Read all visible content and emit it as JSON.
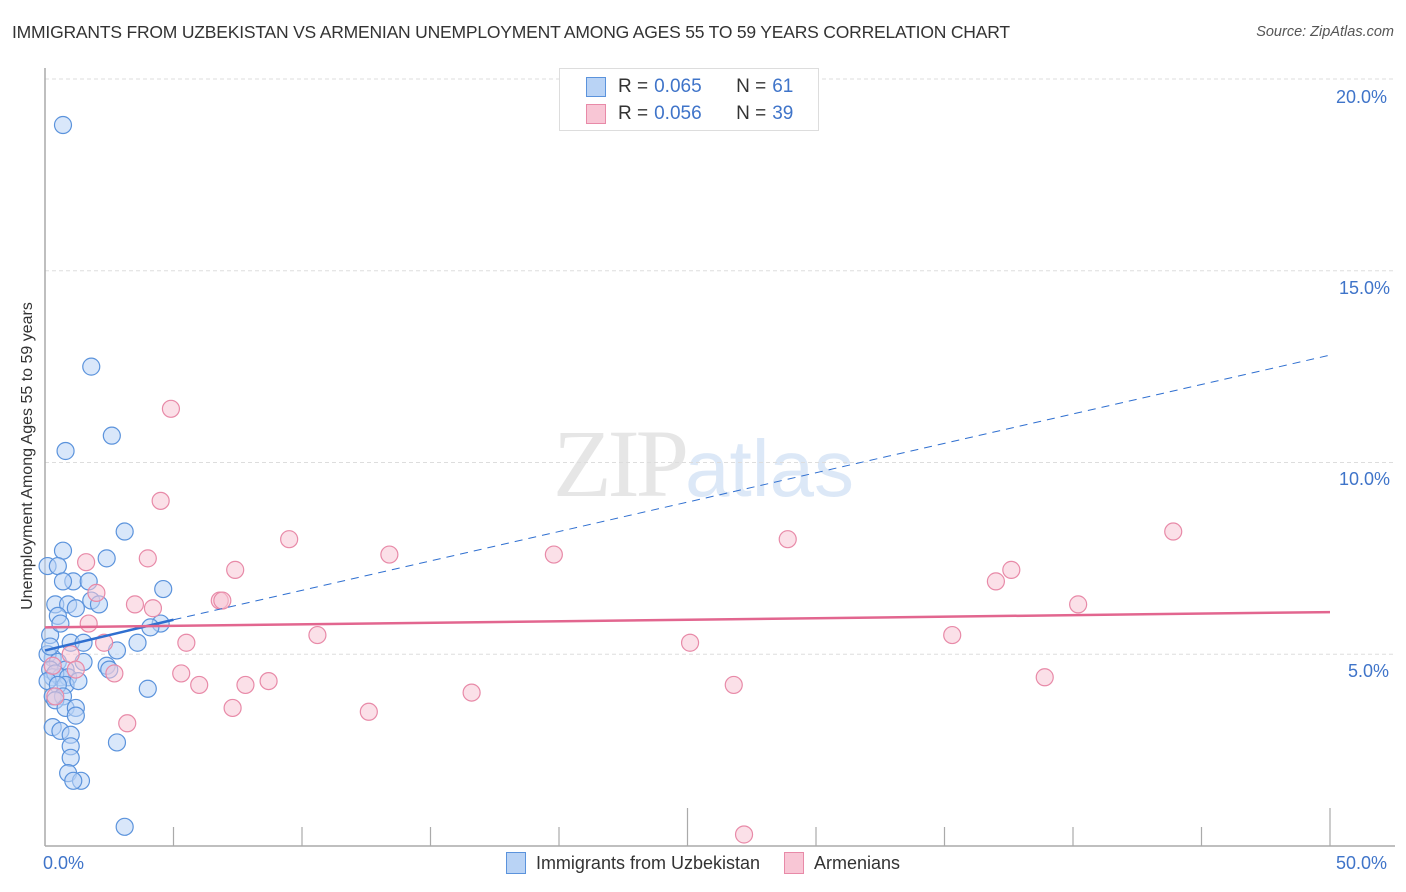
{
  "header": {
    "title": "IMMIGRANTS FROM UZBEKISTAN VS ARMENIAN UNEMPLOYMENT AMONG AGES 55 TO 59 YEARS CORRELATION CHART",
    "source": "Source: ZipAtlas.com"
  },
  "watermark": {
    "zip": "ZIP",
    "atlas": "atlas"
  },
  "colors": {
    "blue_fill": "#b9d3f5",
    "blue_stroke": "#5b93dc",
    "blue_line": "#2f6fd0",
    "pink_fill": "#f8c6d5",
    "pink_stroke": "#e88aa8",
    "pink_line": "#e2668f",
    "tick_label": "#3f74c9",
    "grid": "#dddddd"
  },
  "legend": {
    "rows": [
      {
        "r_label": "R =",
        "r_value": "0.065",
        "n_label": "N =",
        "n_value": "61"
      },
      {
        "r_label": "R =",
        "r_value": "0.056",
        "n_label": "N =",
        "n_value": "39"
      }
    ]
  },
  "bottom_legend": {
    "items": [
      {
        "label": "Immigrants from Uzbekistan"
      },
      {
        "label": "Armenians"
      }
    ]
  },
  "axes": {
    "x_min_label": "0.0%",
    "x_max_label": "50.0%",
    "y_tick_labels": [
      "20.0%",
      "15.0%",
      "10.0%",
      "5.0%"
    ],
    "y_label": "Unemployment Among Ages 55 to 59 years"
  },
  "chart_data": {
    "type": "scatter",
    "title": "IMMIGRANTS FROM UZBEKISTAN VS ARMENIAN UNEMPLOYMENT AMONG AGES 55 TO 59 YEARS CORRELATION CHART",
    "xlabel": "",
    "ylabel": "Unemployment Among Ages 55 to 59 years",
    "xlim": [
      0,
      50
    ],
    "ylim": [
      0,
      20.5
    ],
    "x_ticks": [
      0,
      50
    ],
    "y_ticks": [
      5,
      10,
      15,
      20
    ],
    "grid": true,
    "legend_position": "top-center",
    "series": [
      {
        "name": "Immigrants from Uzbekistan",
        "R": 0.065,
        "N": 61,
        "color": "#5b93dc",
        "trendline": {
          "x0": 0,
          "y0": 5.1,
          "x1": 5.0,
          "y1": 5.9,
          "extended_to_x": 50,
          "extended_y": 12.8,
          "style": "solid then dashed"
        },
        "points": [
          [
            0.7,
            18.8
          ],
          [
            1.8,
            12.5
          ],
          [
            2.6,
            10.7
          ],
          [
            0.8,
            10.3
          ],
          [
            3.1,
            8.2
          ],
          [
            0.1,
            7.3
          ],
          [
            0.7,
            7.7
          ],
          [
            2.4,
            7.5
          ],
          [
            0.5,
            7.3
          ],
          [
            1.1,
            6.9
          ],
          [
            0.7,
            6.9
          ],
          [
            1.7,
            6.9
          ],
          [
            4.6,
            6.7
          ],
          [
            0.4,
            6.3
          ],
          [
            0.9,
            6.3
          ],
          [
            1.2,
            6.2
          ],
          [
            1.8,
            6.4
          ],
          [
            2.1,
            6.3
          ],
          [
            4.5,
            5.8
          ],
          [
            4.1,
            5.7
          ],
          [
            0.5,
            6.0
          ],
          [
            0.2,
            5.5
          ],
          [
            1.0,
            5.3
          ],
          [
            1.5,
            5.3
          ],
          [
            3.6,
            5.3
          ],
          [
            2.8,
            5.1
          ],
          [
            0.3,
            4.9
          ],
          [
            0.1,
            5.0
          ],
          [
            0.5,
            4.8
          ],
          [
            0.2,
            4.6
          ],
          [
            1.5,
            4.8
          ],
          [
            0.8,
            4.6
          ],
          [
            2.4,
            4.7
          ],
          [
            2.5,
            4.6
          ],
          [
            0.3,
            4.4
          ],
          [
            0.6,
            4.4
          ],
          [
            0.4,
            4.5
          ],
          [
            0.9,
            4.4
          ],
          [
            0.1,
            4.3
          ],
          [
            0.8,
            4.2
          ],
          [
            0.5,
            4.2
          ],
          [
            1.3,
            4.3
          ],
          [
            4.0,
            4.1
          ],
          [
            0.3,
            3.9
          ],
          [
            0.7,
            3.9
          ],
          [
            0.4,
            3.8
          ],
          [
            0.8,
            3.6
          ],
          [
            1.2,
            3.6
          ],
          [
            1.2,
            3.4
          ],
          [
            0.3,
            3.1
          ],
          [
            0.6,
            3.0
          ],
          [
            1.0,
            2.9
          ],
          [
            1.0,
            2.6
          ],
          [
            2.8,
            2.7
          ],
          [
            1.0,
            2.3
          ],
          [
            0.9,
            1.9
          ],
          [
            1.4,
            1.7
          ],
          [
            1.1,
            1.7
          ],
          [
            3.1,
            0.5
          ],
          [
            0.2,
            5.2
          ],
          [
            0.6,
            5.8
          ]
        ]
      },
      {
        "name": "Armenians",
        "R": 0.056,
        "N": 39,
        "color": "#e88aa8",
        "trendline": {
          "x0": 0,
          "y0": 5.7,
          "x1": 50,
          "y1": 6.1,
          "style": "solid"
        },
        "points": [
          [
            4.9,
            11.4
          ],
          [
            4.5,
            9.0
          ],
          [
            1.6,
            7.4
          ],
          [
            4.0,
            7.5
          ],
          [
            9.5,
            8.0
          ],
          [
            13.4,
            7.6
          ],
          [
            19.8,
            7.6
          ],
          [
            7.4,
            7.2
          ],
          [
            2.0,
            6.6
          ],
          [
            3.5,
            6.3
          ],
          [
            4.2,
            6.2
          ],
          [
            6.8,
            6.4
          ],
          [
            6.9,
            6.4
          ],
          [
            1.7,
            5.8
          ],
          [
            2.3,
            5.3
          ],
          [
            5.5,
            5.3
          ],
          [
            10.6,
            5.5
          ],
          [
            25.1,
            5.3
          ],
          [
            1.0,
            5.0
          ],
          [
            0.3,
            4.7
          ],
          [
            1.2,
            4.6
          ],
          [
            2.7,
            4.5
          ],
          [
            5.3,
            4.5
          ],
          [
            6.0,
            4.2
          ],
          [
            7.8,
            4.2
          ],
          [
            8.7,
            4.3
          ],
          [
            16.6,
            4.0
          ],
          [
            26.8,
            4.2
          ],
          [
            12.6,
            3.5
          ],
          [
            7.3,
            3.6
          ],
          [
            3.2,
            3.2
          ],
          [
            0.4,
            3.9
          ],
          [
            28.9,
            8.0
          ],
          [
            37.0,
            6.9
          ],
          [
            37.6,
            7.2
          ],
          [
            40.2,
            6.3
          ],
          [
            43.9,
            8.2
          ],
          [
            35.3,
            5.5
          ],
          [
            38.9,
            4.4
          ]
        ]
      }
    ],
    "outlier_note": "One Armenians point near x=27.2, y=0.3"
  }
}
